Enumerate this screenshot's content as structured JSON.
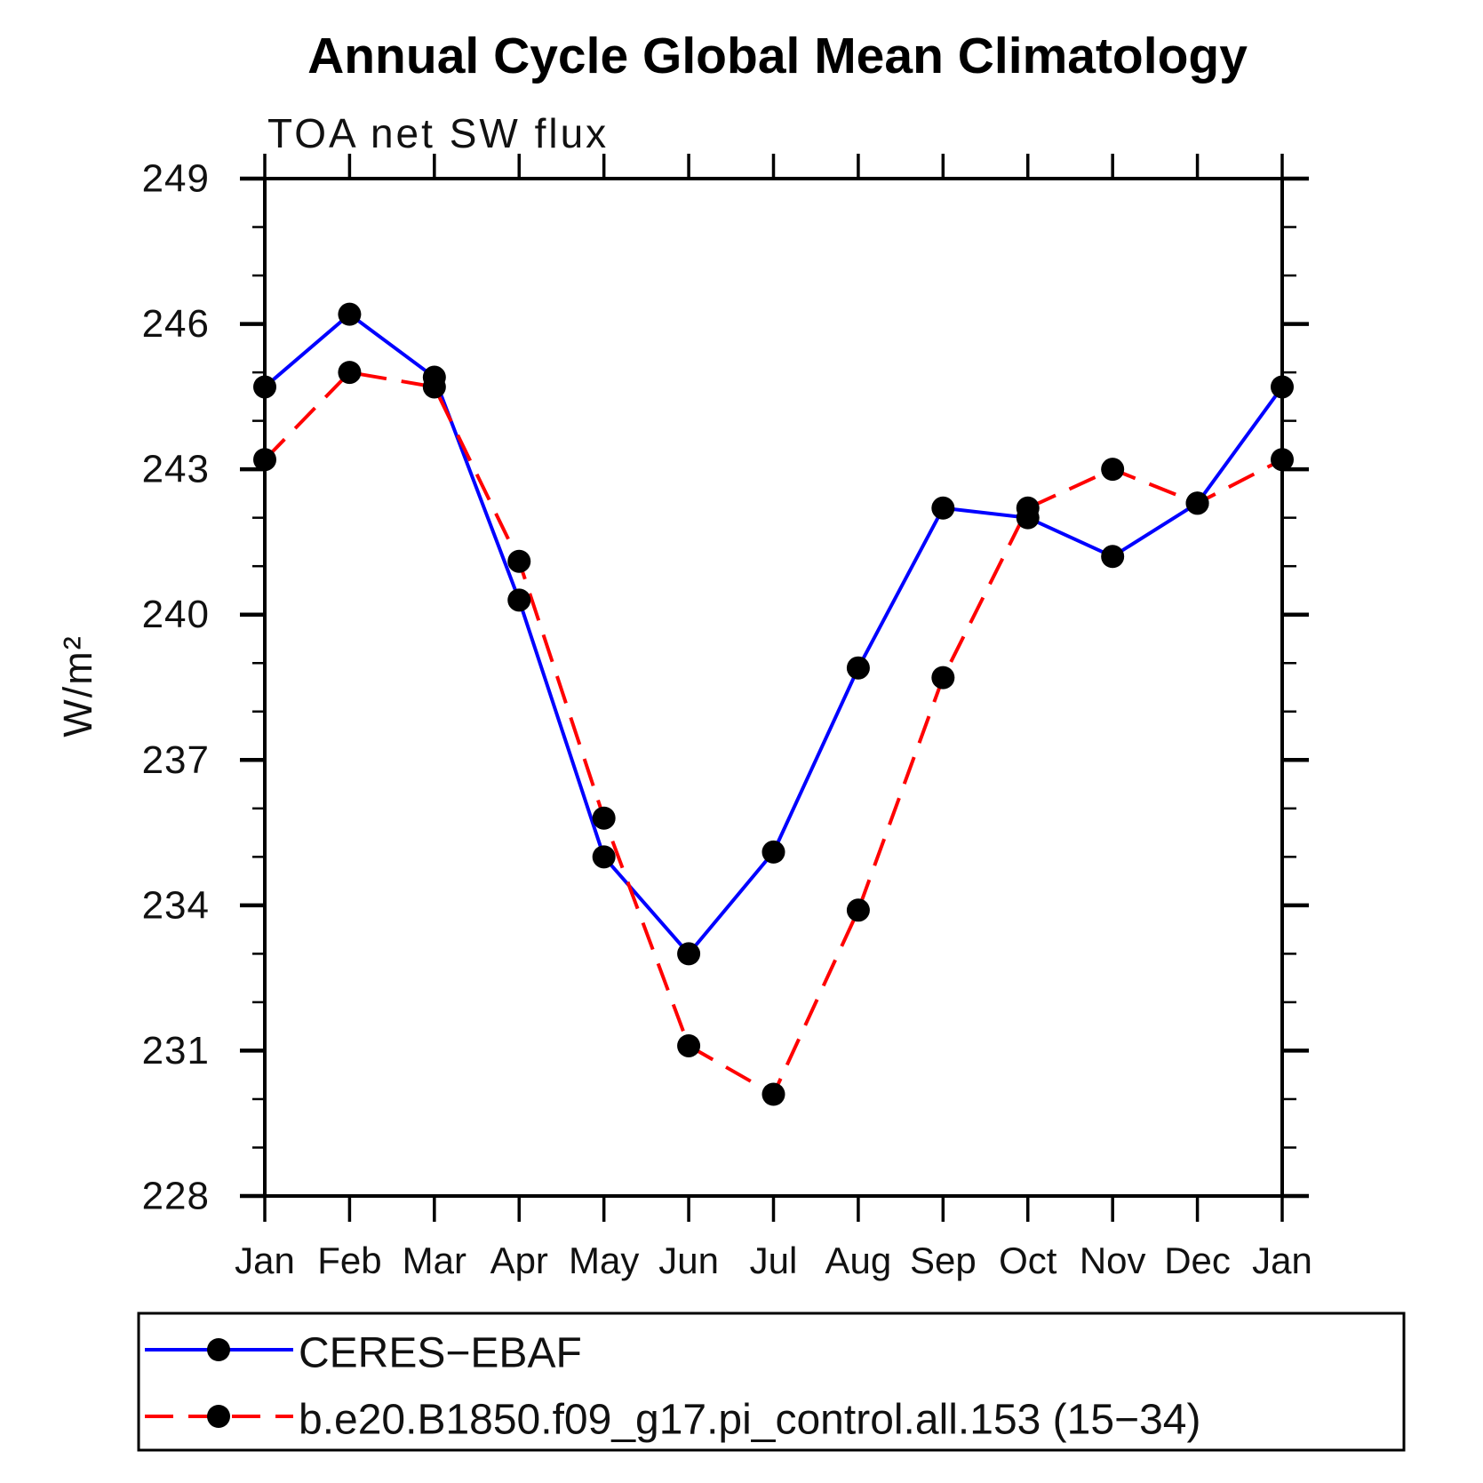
{
  "chart_data": {
    "type": "line",
    "title": "Annual Cycle Global Mean Climatology",
    "subtitle": "TOA net SW flux",
    "ylabel": "W/m²",
    "xlabel": "",
    "categories": [
      "Jan",
      "Feb",
      "Mar",
      "Apr",
      "May",
      "Jun",
      "Jul",
      "Aug",
      "Sep",
      "Oct",
      "Nov",
      "Dec",
      "Jan"
    ],
    "ylim": [
      228,
      249
    ],
    "y_major_ticks": [
      228,
      231,
      234,
      237,
      240,
      243,
      246,
      249
    ],
    "y_minor_tick_step": 1,
    "grid": false,
    "legend_position": "bottom-left",
    "marker": "filled-circle",
    "marker_color": "#000000",
    "frame_color": "#000000",
    "background_color": "#ffffff",
    "series": [
      {
        "name": "CERES−EBAF",
        "color": "#0000ff",
        "line_style": "solid",
        "values": [
          244.7,
          246.2,
          244.9,
          240.3,
          235.0,
          233.0,
          235.1,
          238.9,
          242.2,
          242.0,
          241.2,
          242.3,
          244.7
        ]
      },
      {
        "name": "b.e20.B1850.f09_g17.pi_control.all.153 (15−34)",
        "color": "#ff0000",
        "line_style": "dashed",
        "values": [
          243.2,
          245.0,
          244.7,
          241.1,
          235.8,
          231.1,
          230.1,
          233.9,
          238.7,
          242.2,
          243.0,
          242.3,
          243.2
        ]
      }
    ]
  }
}
